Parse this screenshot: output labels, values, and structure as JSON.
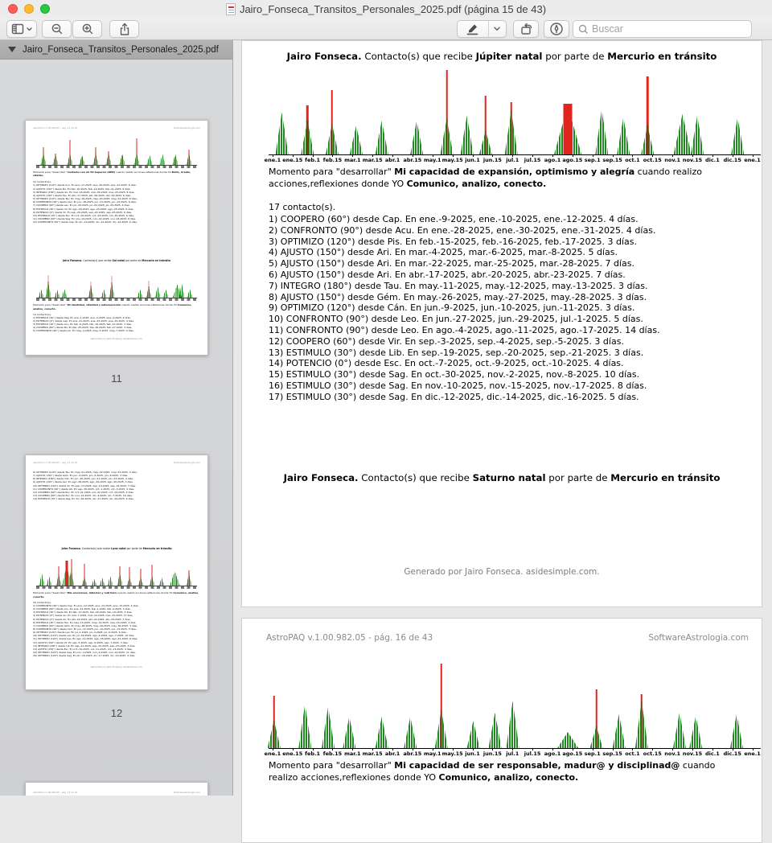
{
  "window": {
    "title": "Jairo_Fonseca_Transitos_Personales_2025.pdf (página 15 de 43)"
  },
  "toolbar": {
    "search_placeholder": "Buscar"
  },
  "sidebar": {
    "filename": "Jairo_Fonseca_Transitos_Personales_2025.pdf",
    "thumb11": {
      "page_label": "11",
      "header_left": "AstroPAQ v.1.00.982.05  -  pág. 11 de 43",
      "header_right": "SoftwareAstrologia.com",
      "chart1": {
        "clusters": [
          {
            "p": 0.045,
            "g": 42,
            "r": 62
          },
          {
            "p": 0.12,
            "g": 38,
            "r": 40
          },
          {
            "p": 0.21,
            "g": 40,
            "r": 88
          },
          {
            "p": 0.285,
            "g": 35,
            "r": 30
          },
          {
            "p": 0.37,
            "g": 42,
            "r": 62
          },
          {
            "p": 0.45,
            "g": 42,
            "r": 48
          },
          {
            "p": 0.535,
            "g": 40,
            "r": 35
          },
          {
            "p": 0.625,
            "g": 42,
            "r": 95
          },
          {
            "p": 0.705,
            "g": 36,
            "r": 0
          },
          {
            "p": 0.785,
            "g": 40,
            "r": 0
          },
          {
            "p": 0.865,
            "g": 40,
            "r": 30
          },
          {
            "p": 0.95,
            "g": 40,
            "r": 55
          }
        ]
      },
      "momento1": {
        "pre": "Momento para \"desarrollar\" ",
        "bold1": "Contacto con mi YO Superior (RPN)",
        "mid": " cuando realizo acciones,reflexiones donde YO ",
        "bold2": "Brillo, irradio, vitalizo."
      },
      "count1": "12 contacto(s).",
      "list1": [
        "1) OPTIMIZO (120°) desde Acu. En ene.-17-2025, ene.-20-2025, ene.-22-2025. 6 días.",
        "2) AJUSTO (150°) desde Pis. En feb.-16-2025, feb.-19-2025, feb.-21-2025. 6 días.",
        "3) INTEGRO (180°) desde Ari. En mar.-18-2025, mar.-20-2025, mar.-23-2025. 6 días.",
        "4) AJUSTO (150°) desde Tau. En abr.-17-2025, abr.-20-2025, abr.-22-2025. 6 días.",
        "5) OPTIMIZO (120°) desde Tau. En may.-18-2025, may.-20-2025, may.-23-2025. 6 días.",
        "6) CONFRONTO (90°) desde Cán. En jun.-18-2025, jun.-21-2025, jun.-23-2025. 6 días.",
        "7) COOPERO (60°) desde Leo. En jul.-20-2025, jul.-22-2025, jul.-25-2025. 6 días.",
        "8) ESTIMULO (30°) desde Vir. En ago.-20-2025, ago.-23-2025, ago.-25-2025. 6 días.",
        "9) POTENCIO (0°) desde Vir. En sep.-20-2025, sep.-22-2025, sep.-25-2025. 6 días.",
        "10) ESTIMULO (30°) desde Esc. En oct.-20-2025, oct.-23-2025, oct.-25-2025. 6 días.",
        "11) COOPERO (60°) desde Sag. En nov.-19-2025, nov.-22-2025, nov.-24-2025. 6 días.",
        "12) CONFRONTO (90°) desde Cap. En dic.-19-2025, dic.-21-2025, dic.-24-2025. 6 días."
      ],
      "title": {
        "b1": "Jairo Fonseca.",
        "t1": " Contacto(s) que recibe ",
        "b2": "Sol natal",
        "t2": " por parte de ",
        "b3": "Mercurio en tránsito"
      },
      "chart2": {
        "rc": "#ec8f8f",
        "clusters": [
          {
            "p": 0.03,
            "g": 32,
            "r": 0
          },
          {
            "p": 0.075,
            "g": 58,
            "r": 82
          },
          {
            "p": 0.13,
            "g": 30,
            "r": 0
          },
          {
            "p": 0.175,
            "g": 32,
            "r": 0
          },
          {
            "p": 0.34,
            "g": 42,
            "r": 58
          },
          {
            "p": 0.42,
            "g": 32,
            "r": 0
          },
          {
            "p": 0.47,
            "g": 55,
            "r": 78
          },
          {
            "p": 0.645,
            "g": 32,
            "r": 0
          },
          {
            "p": 0.7,
            "g": 40,
            "r": 60
          },
          {
            "p": 0.755,
            "g": 42,
            "r": 0
          },
          {
            "p": 0.805,
            "g": 32,
            "r": 0
          },
          {
            "p": 0.878,
            "g": 48,
            "r": 0,
            "w": 12
          },
          {
            "p": 0.905,
            "g": 52,
            "r": 0
          },
          {
            "p": 0.955,
            "g": 32,
            "r": 0
          }
        ]
      },
      "momento2": {
        "pre": "Momento para \"desarrollar\" ",
        "bold1": "Mi identidad, vitalidad y autoexpresión",
        "mid": " cuando realizo acciones,reflexiones donde YO ",
        "bold2": "Comunico, analizo, conecto."
      },
      "count2": "14 contacto(s).",
      "list2": [
        "1) ESTIMULO (30°) desde Sag. En ene.-1-2025, ene.-2-2025, ene.-4-2025. 4 días.",
        "2) POTENCIO (0°) desde Cap. En ene.-21-2025, ene.-23-2025, ene.-24-2025. 4 días.",
        "3) ESTIMULO (30°) desde Acu. En feb.-9-2025, feb.-10-2025, feb.-11-2025. 3 días.",
        "4) COOPERO (60°) desde Pis. En feb.-25-2025, feb.-26-2025, feb.-27-2025. 3 días.",
        "5) CONFRONTO (90°) desde Ari. En may.-4-2025, may.-5-2025, may.-7-2025. 4 días."
      ],
      "footer": "Generado por Jairo Fonseca. asidesimple.com."
    },
    "thumb12": {
      "page_label": "12",
      "header_left": "AstroPAQ v.1.00.982.05  -  pág. 12 de 43",
      "header_right": "SoftwareAstrologia.com",
      "cont_list": [
        "6) OPTIMIZO (120°) desde Tau. En may.-21-2025, may.-22-2025, may.-23-2025. 3 días.",
        "7) AJUSTO (150°) desde Gém. En jun.-4-2025, jun.-5-2025, jun.-6-2025. 3 días.",
        "8) INTEGRO (180°) desde Cán. En jun.-20-2025, jun.-21-2025, jun.-23-2025. 4 días.",
        "9) AJUSTO (150°) desde Leo. En ago.-28-2025, ago.-29-2025, ago.-30-2025. 3 días.",
        "10) OPTIMIZO (120°) desde Vir. En sep.-13-2025, sep.-14-2025, sep.-15-2025. 3 días.",
        "11) CONFRONTO (90°) desde Lib. En sep.-30-2025, oct.-1-2025, oct.-3-2025. 4 días.",
        "12) COOPERO (60°) desde Esc. En oct.-21-2025, oct.-22-2025, oct.-24-2025. 4 días.",
        "13) COOPERO (60°) desde Esc. En nov.-12-2025, dic.-4-2025, dic.-7-2025. 16 días.",
        "14) ESTIMULO (30°) desde Sag. En dic.-26-2025, dic.-27-2025, dic.-29-2025. 4 días."
      ],
      "title": {
        "b1": "Jairo Fonseca.",
        "t1": " Contacto(s) que recibe ",
        "b2": "Luna natal",
        "t2": " por parte de ",
        "b3": "Mercurio en tránsito"
      },
      "chart": {
        "clusters": [
          {
            "p": 0.035,
            "g": 45,
            "r": 0
          },
          {
            "p": 0.08,
            "g": 35,
            "r": 0
          },
          {
            "p": 0.14,
            "g": 42,
            "r": 70
          },
          {
            "p": 0.19,
            "g": 72,
            "r": 90,
            "w": 12,
            "rw": 3
          },
          {
            "p": 0.218,
            "g": 62,
            "r": 95
          },
          {
            "p": 0.3,
            "g": 32,
            "r": 78
          },
          {
            "p": 0.36,
            "g": 26,
            "r": 0
          },
          {
            "p": 0.41,
            "g": 30,
            "r": 0
          },
          {
            "p": 0.46,
            "g": 36,
            "r": 0
          },
          {
            "p": 0.52,
            "g": 46,
            "r": 70
          },
          {
            "p": 0.58,
            "g": 30,
            "r": 66
          },
          {
            "p": 0.65,
            "g": 30,
            "r": 60
          },
          {
            "p": 0.72,
            "g": 36,
            "r": 76
          },
          {
            "p": 0.78,
            "g": 30,
            "r": 0
          },
          {
            "p": 0.862,
            "g": 52,
            "r": 0,
            "w": 13
          },
          {
            "p": 0.95,
            "g": 44,
            "r": 55
          }
        ]
      },
      "momento": {
        "pre": "Momento para \"desarrollar\" ",
        "bold1": "Mis emociones, intuición y nutrición",
        "mid": " cuando realizo acciones,reflexiones donde YO ",
        "bold2": "Comunico, analizo, conecto."
      },
      "count": "16 contacto(s).",
      "list": [
        "1) CONFRONTO (90°) desde Cap. En ene.-12-2025, ene.-13-2025, ene.-15-2025. 4 días.",
        "2) COOPERO (60°) desde Acu. En ene.-31-2025, feb.-1-2025, feb.-2-2025. 3 días.",
        "3) ESTIMULO (30°) desde Pis. En feb.-17-2025, feb.-18-2025, feb.-19-2025. 3 días.",
        "4) POTENCIO (0°) desde Ari. En mar.-7-2025, mar.-10-2025, mar.-23-2025. 17 días.",
        "5) POTENCIO (0°) desde Ari. En abr.-22-2025, abr.-24-2025, abr.-26-2025. 5 días.",
        "6) ESTIMULO (30°) desde Tau. En may.-13-2025, may.-14-2025, may.-15-2025. 3 días.",
        "7) COOPERO (60°) desde Gém. En may.-28-2025, may.-29-2025, may.-30-2025. 3 días.",
        "8) CONFRONTO (90°) desde Cán. En jun.-11-2025, jun.-12-2025, jun.-13-2025. 3 días.",
        "9) OPTIMIZO (120°) desde Leo. En jul.-1-2025, jul.-3-2025, jul.-6-2025. 6 días.",
        "10) OPTIMIZO (120°) desde Leo. En jul.-29-2025, ago.-2-2025, ago.-7-2025. 10 días.",
        "11) OPTIMIZO (120°) desde Leo. En ago.-14-2025, ago.-18-2025, ago.-21-2025. 8 días.",
        "12) AJUSTO (150°) desde Vir. En sep.-5-2025, sep.-6-2025, sep.-7-2025. 3 días.",
        "13) INTEGRO (180°) desde Lib. En sep.-21-2025, sep.-22-2025, sep.-23-2025. 3 días.",
        "14) AJUSTO (150°) desde Esc. En oct.-10-2025, oct.-11-2025, oct.-13-2025. 4 días.",
        "15) OPTIMIZO (120°) desde Sag. En nov.-4-2025, nov.-9-2025, nov.-14-2025. 11 días.",
        "16) OPTIMIZO (120°) desde Sag. En dic.-16-2025, dic.-17-2025, dic.-19-2025. 4 días."
      ],
      "footer": "Generado por Jairo Fonseca. asidesimple.com."
    },
    "thumb13": {
      "header_left": "AstroPAQ v.1.00.982.05  -  pág. 13 de 43",
      "header_right": "SoftwareAstrologia.com"
    }
  },
  "ticks": [
    "ene.1",
    "ene.15",
    "feb.1",
    "feb.15",
    "mar.1",
    "mar.15",
    "abr.1",
    "abr.15",
    "may.1",
    "may.15",
    "jun.1",
    "jun.15",
    "jul.1",
    "jul.15",
    "ago.1",
    "ago.15",
    "sep.1",
    "sep.15",
    "oct.1",
    "oct.15",
    "nov.1",
    "nov.15",
    "dic.1",
    "dic.15",
    "ene.1"
  ],
  "page15": {
    "title": {
      "b1": "Jairo Fonseca.",
      "t1": " Contacto(s) que recibe ",
      "b2": "Júpiter natal",
      "t2": " por parte de ",
      "b3": "Mercurio en tránsito"
    },
    "chart": {
      "clusters": [
        {
          "p": 0.027,
          "g": 50,
          "r": 0
        },
        {
          "p": 0.079,
          "g": 40,
          "r": 58
        },
        {
          "p": 0.129,
          "g": 36,
          "r": 76
        },
        {
          "p": 0.178,
          "g": 34,
          "r": 0
        },
        {
          "p": 0.23,
          "g": 40,
          "r": 0
        },
        {
          "p": 0.301,
          "g": 40,
          "r": 0
        },
        {
          "p": 0.362,
          "g": 42,
          "r": 100
        },
        {
          "p": 0.403,
          "g": 46,
          "r": 0
        },
        {
          "p": 0.441,
          "g": 28,
          "r": 70
        },
        {
          "p": 0.493,
          "g": 52,
          "r": 62
        },
        {
          "p": 0.608,
          "g": 58,
          "r": 60,
          "w": 34,
          "rw": 11
        },
        {
          "p": 0.677,
          "g": 54,
          "r": 0
        },
        {
          "p": 0.721,
          "g": 44,
          "r": 0
        },
        {
          "p": 0.77,
          "g": 34,
          "r": 92
        },
        {
          "p": 0.841,
          "g": 48,
          "r": 0,
          "w": 22
        },
        {
          "p": 0.871,
          "g": 46,
          "r": 0
        },
        {
          "p": 0.953,
          "g": 44,
          "r": 0
        }
      ]
    },
    "momento": {
      "pre": "Momento para \"desarrollar\" ",
      "bold1": "Mi capacidad de expansión, optimismo y alegría",
      "mid": " cuando realizo acciones,reflexiones donde YO ",
      "bold2": "Comunico, analizo, conecto."
    },
    "count_line": "17 contacto(s).",
    "contacts": [
      "1) COOPERO (60°) desde Cap. En ene.-9-2025, ene.-10-2025, ene.-12-2025. 4 días.",
      "2) CONFRONTO (90°) desde Acu. En ene.-28-2025, ene.-30-2025, ene.-31-2025. 4 días.",
      "3) OPTIMIZO (120°) desde Pis. En feb.-15-2025, feb.-16-2025, feb.-17-2025. 3 días.",
      "4) AJUSTO (150°) desde Ari. En mar.-4-2025, mar.-6-2025, mar.-8-2025. 5 días.",
      "5) AJUSTO (150°) desde Ari. En mar.-22-2025, mar.-25-2025, mar.-28-2025. 7 días.",
      "6) AJUSTO (150°) desde Ari. En abr.-17-2025, abr.-20-2025, abr.-23-2025. 7 días.",
      "7) INTEGRO (180°) desde Tau. En may.-11-2025, may.-12-2025, may.-13-2025. 3 días.",
      "8) AJUSTO (150°) desde Gém. En may.-26-2025, may.-27-2025, may.-28-2025. 3 días.",
      "9) OPTIMIZO (120°) desde Cán. En jun.-9-2025, jun.-10-2025, jun.-11-2025. 3 días.",
      "10) CONFRONTO (90°) desde Leo. En jun.-27-2025, jun.-29-2025, jul.-1-2025. 5 días.",
      "11) CONFRONTO (90°) desde Leo. En ago.-4-2025, ago.-11-2025, ago.-17-2025. 14 días.",
      "12) COOPERO (60°) desde Vir. En sep.-3-2025, sep.-4-2025, sep.-5-2025. 3 días.",
      "13) ESTIMULO (30°) desde Lib. En sep.-19-2025, sep.-20-2025, sep.-21-2025. 3 días.",
      "14) POTENCIO (0°) desde Esc. En oct.-7-2025, oct.-9-2025, oct.-10-2025. 4 días.",
      "15) ESTIMULO (30°) desde Sag. En oct.-30-2025, nov.-2-2025, nov.-8-2025. 10 días.",
      "16) ESTIMULO (30°) desde Sag. En nov.-10-2025, nov.-15-2025, nov.-17-2025. 8 días.",
      "17) ESTIMULO (30°) desde Sag. En dic.-12-2025, dic.-14-2025, dic.-16-2025. 5 días."
    ],
    "title2": {
      "b1": "Jairo Fonseca.",
      "t1": " Contacto(s) que recibe ",
      "b2": "Saturno natal",
      "t2": " por parte de ",
      "b3": "Mercurio en tránsito"
    },
    "footer": "Generado por Jairo Fonseca. asidesimple.com."
  },
  "page16": {
    "header_left": "AstroPAQ v.1.00.982.05   -   pág. 16 de 43",
    "header_right": "SoftwareAstrologia.com",
    "chart": {
      "clusters": [
        {
          "p": 0.011,
          "g": 33,
          "r": 62
        },
        {
          "p": 0.074,
          "g": 52,
          "r": 0
        },
        {
          "p": 0.121,
          "g": 49,
          "r": 0
        },
        {
          "p": 0.164,
          "g": 37,
          "r": 0
        },
        {
          "p": 0.23,
          "g": 37,
          "r": 0
        },
        {
          "p": 0.288,
          "g": 37,
          "r": 0
        },
        {
          "p": 0.351,
          "g": 45,
          "r": 100
        },
        {
          "p": 0.416,
          "g": 32,
          "r": 0
        },
        {
          "p": 0.46,
          "g": 42,
          "r": 0
        },
        {
          "p": 0.496,
          "g": 56,
          "r": 0
        },
        {
          "p": 0.608,
          "g": 19,
          "r": 0,
          "w": 26
        },
        {
          "p": 0.666,
          "g": 26,
          "r": 70
        },
        {
          "p": 0.712,
          "g": 40,
          "r": 0
        },
        {
          "p": 0.758,
          "g": 56,
          "r": 64
        },
        {
          "p": 0.835,
          "g": 42,
          "r": 0
        },
        {
          "p": 0.868,
          "g": 38,
          "r": 0
        },
        {
          "p": 0.951,
          "g": 40,
          "r": 0
        }
      ]
    },
    "momento": {
      "pre": "Momento para \"desarrollar\" ",
      "bold1": "Mi capacidad de ser responsable, madur@ y disciplinad@",
      "mid": " cuando realizo acciones,reflexiones donde YO ",
      "bold2": "Comunico, analizo, conecto."
    }
  },
  "colors": {
    "chart_green": "#1f8a1f",
    "chart_red": "#e0261c",
    "chart_overlap": "#7a3c10",
    "traffic_red": "#ff5f57",
    "traffic_yellow": "#febc2e",
    "traffic_green": "#28c840"
  }
}
